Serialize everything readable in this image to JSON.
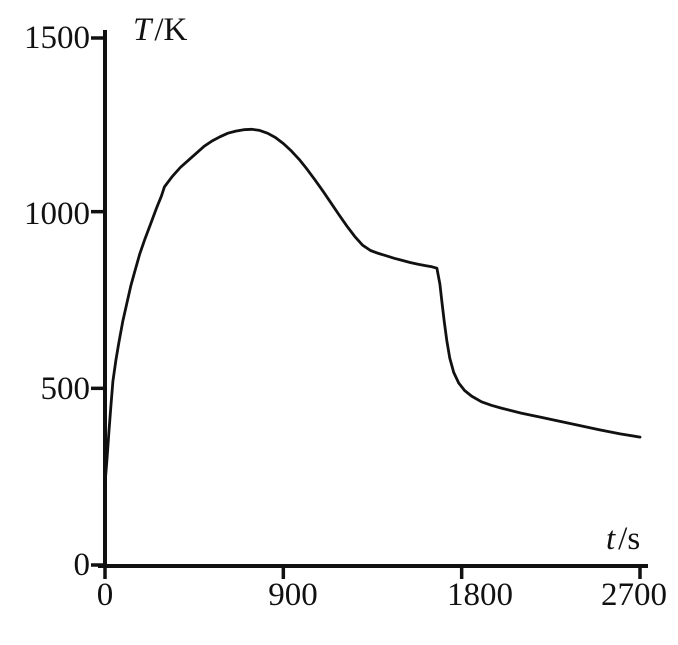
{
  "figure": {
    "background": "#ffffff",
    "ink_color": "#111111"
  },
  "chart_data": {
    "type": "line",
    "title": "",
    "xlabel": "t /s",
    "ylabel": "T /K",
    "xlabel_var": "t",
    "xlabel_unit": "/s",
    "ylabel_var": "T",
    "ylabel_unit": "/K",
    "xlim": [
      0,
      2700
    ],
    "ylim": [
      0,
      1500
    ],
    "xticks": [
      0,
      900,
      1800,
      2700
    ],
    "yticks": [
      0,
      500,
      1000,
      1500
    ],
    "xtick_labels": [
      "0",
      "900",
      "1800",
      "2700"
    ],
    "ytick_labels": [
      "0",
      "500",
      "1000",
      "1500"
    ],
    "grid": false,
    "legend": "none",
    "series": [
      {
        "name": "temperature-vs-time",
        "points": [
          [
            0,
            230
          ],
          [
            10,
            300
          ],
          [
            20,
            380
          ],
          [
            30,
            450
          ],
          [
            40,
            520
          ],
          [
            55,
            580
          ],
          [
            70,
            630
          ],
          [
            90,
            690
          ],
          [
            110,
            740
          ],
          [
            130,
            790
          ],
          [
            150,
            830
          ],
          [
            175,
            880
          ],
          [
            200,
            920
          ],
          [
            230,
            965
          ],
          [
            260,
            1010
          ],
          [
            285,
            1045
          ],
          [
            300,
            1070
          ],
          [
            340,
            1100
          ],
          [
            380,
            1125
          ],
          [
            420,
            1145
          ],
          [
            460,
            1165
          ],
          [
            500,
            1185
          ],
          [
            540,
            1200
          ],
          [
            580,
            1212
          ],
          [
            620,
            1222
          ],
          [
            660,
            1228
          ],
          [
            700,
            1232
          ],
          [
            740,
            1233
          ],
          [
            780,
            1230
          ],
          [
            820,
            1222
          ],
          [
            860,
            1210
          ],
          [
            900,
            1193
          ],
          [
            940,
            1172
          ],
          [
            980,
            1148
          ],
          [
            1020,
            1120
          ],
          [
            1060,
            1090
          ],
          [
            1100,
            1058
          ],
          [
            1140,
            1025
          ],
          [
            1180,
            992
          ],
          [
            1220,
            960
          ],
          [
            1260,
            930
          ],
          [
            1300,
            905
          ],
          [
            1340,
            890
          ],
          [
            1380,
            882
          ],
          [
            1420,
            875
          ],
          [
            1460,
            868
          ],
          [
            1500,
            862
          ],
          [
            1540,
            856
          ],
          [
            1580,
            851
          ],
          [
            1620,
            847
          ],
          [
            1650,
            844
          ],
          [
            1675,
            840
          ],
          [
            1690,
            795
          ],
          [
            1700,
            745
          ],
          [
            1712,
            690
          ],
          [
            1725,
            635
          ],
          [
            1740,
            585
          ],
          [
            1760,
            545
          ],
          [
            1785,
            515
          ],
          [
            1815,
            494
          ],
          [
            1850,
            478
          ],
          [
            1900,
            462
          ],
          [
            1950,
            452
          ],
          [
            2000,
            444
          ],
          [
            2100,
            430
          ],
          [
            2200,
            418
          ],
          [
            2300,
            406
          ],
          [
            2400,
            394
          ],
          [
            2500,
            382
          ],
          [
            2600,
            371
          ],
          [
            2700,
            362
          ]
        ]
      }
    ]
  }
}
